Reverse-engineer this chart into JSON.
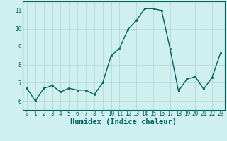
{
  "x": [
    0,
    1,
    2,
    3,
    4,
    5,
    6,
    7,
    8,
    9,
    10,
    11,
    12,
    13,
    14,
    15,
    16,
    17,
    18,
    19,
    20,
    21,
    22,
    23
  ],
  "y": [
    6.7,
    6.0,
    6.7,
    6.85,
    6.5,
    6.7,
    6.6,
    6.6,
    6.35,
    7.0,
    8.5,
    8.9,
    9.95,
    10.45,
    11.1,
    11.1,
    11.0,
    8.9,
    6.55,
    7.2,
    7.35,
    6.65,
    7.3,
    8.65
  ],
  "xlabel": "Humidex (Indice chaleur)",
  "ylim": [
    5.5,
    11.5
  ],
  "xlim": [
    -0.5,
    23.5
  ],
  "yticks": [
    6,
    7,
    8,
    9,
    10,
    11
  ],
  "xticks": [
    0,
    1,
    2,
    3,
    4,
    5,
    6,
    7,
    8,
    9,
    10,
    11,
    12,
    13,
    14,
    15,
    16,
    17,
    18,
    19,
    20,
    21,
    22,
    23
  ],
  "line_color": "#006060",
  "marker_color": "#006060",
  "bg_color": "#d0f0f0",
  "grid_color": "#b8d8d8",
  "tick_label_fontsize": 5.5,
  "xlabel_fontsize": 7.5,
  "linewidth": 1.0,
  "markersize": 2.0
}
